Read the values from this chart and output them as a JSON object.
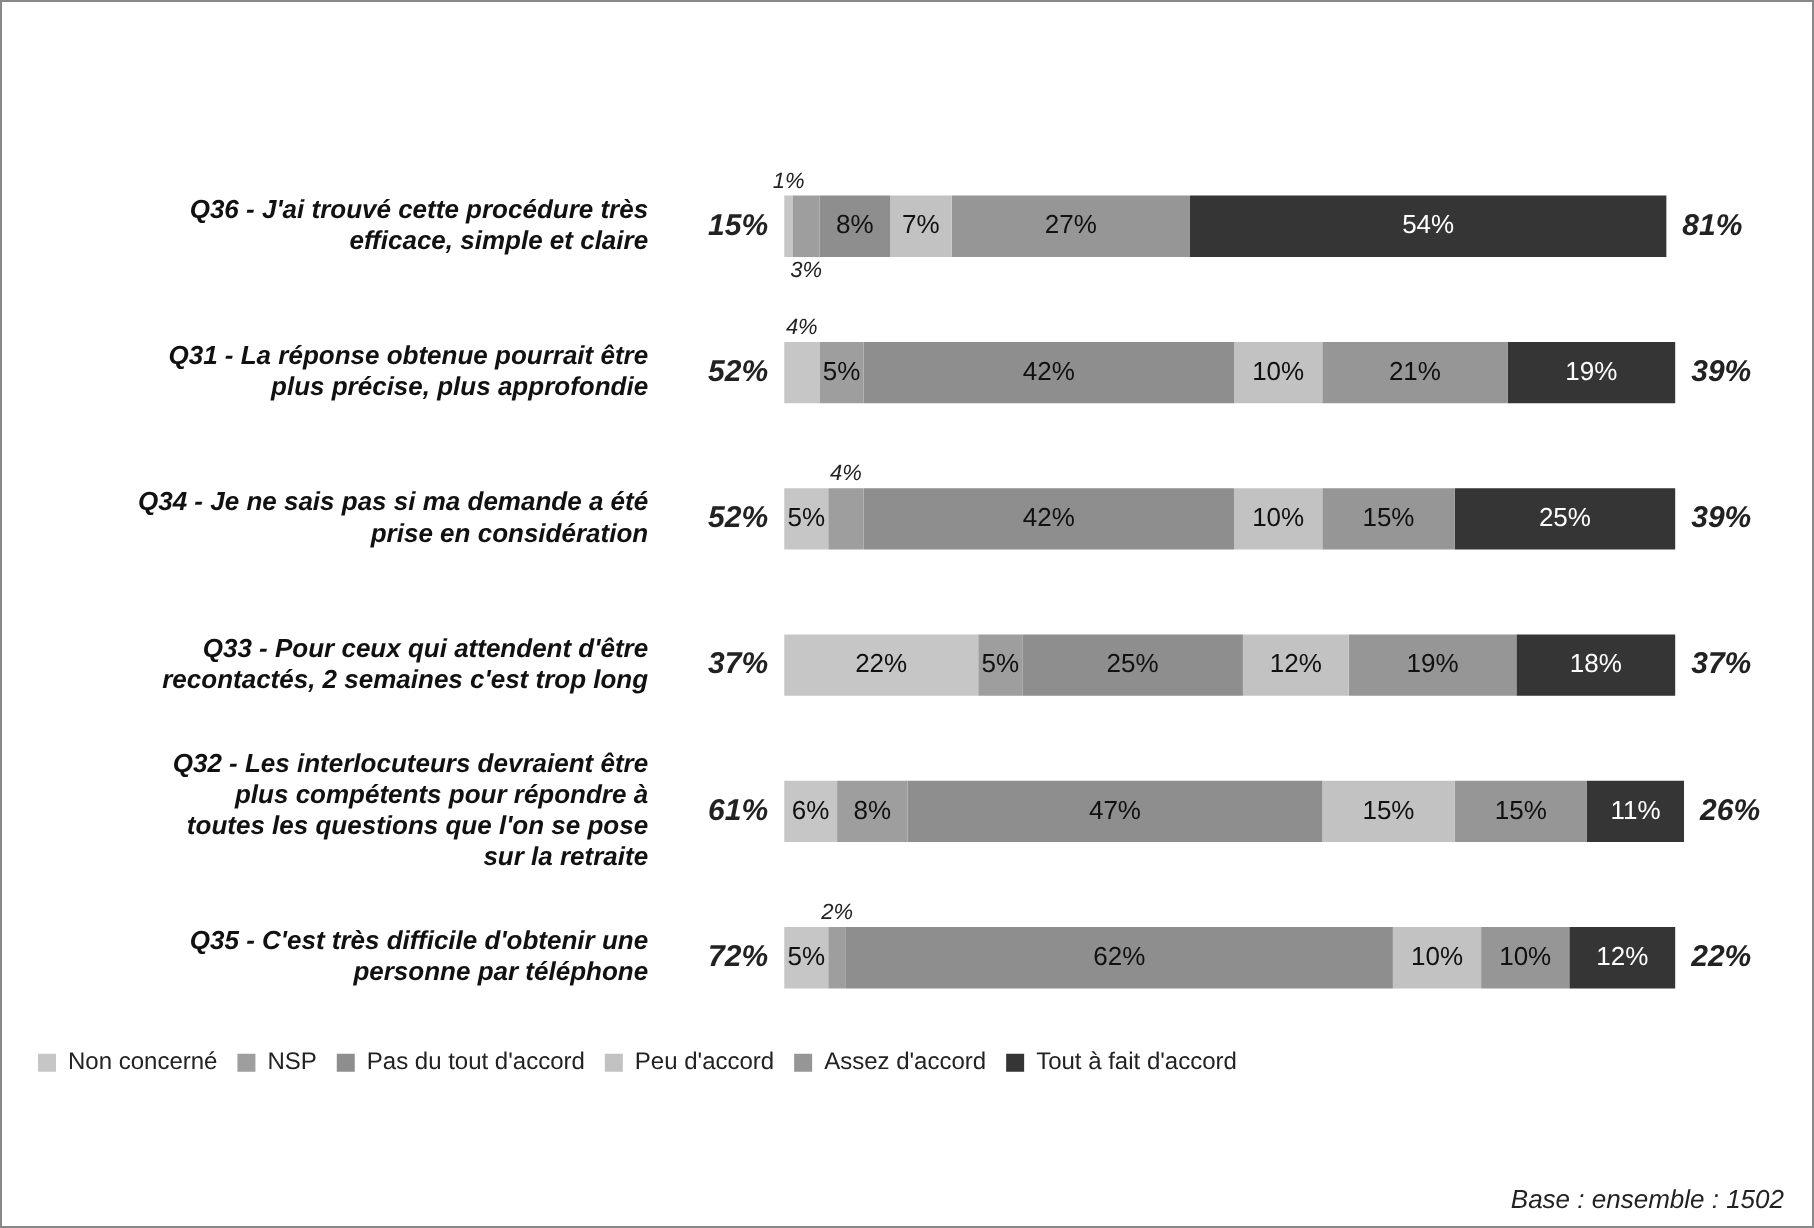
{
  "chart_data": {
    "type": "bar",
    "orientation": "horizontal",
    "stacked": true,
    "grid": false,
    "legend": "bottom left",
    "tick_labels": "y",
    "categories": [
      "Q36 - J'ai trouvé cette procédure très\nefficace, simple et claire",
      "Q31 - La réponse obtenue pourrait être\nplus précise, plus approfondie",
      "Q34 - Je ne sais pas si ma demande a été\nprise en considération",
      "Q33 - Pour ceux qui attendent d'être\nrecontactés, 2 semaines c'est trop long",
      "Q32 - Les interlocuteurs devraient être\nplus compétents pour répondre à\ntoutes les questions que l'on se pose\nsur la retraite",
      "Q35 - C'est très difficile d'obtenir une\npersonne par téléphone"
    ],
    "series": [
      {
        "name": "Non concerné",
        "color": "#c6c6c6",
        "values": [
          1,
          4,
          5,
          22,
          6,
          5
        ],
        "value_labels": [
          "1%",
          "4%",
          "5%",
          "22%",
          "6%",
          "5%"
        ]
      },
      {
        "name": "NSP",
        "color": "#9e9e9e",
        "values": [
          3,
          5,
          4,
          5,
          8,
          2
        ],
        "value_labels": [
          "3%",
          "5%",
          "4%",
          "5%",
          "8%",
          "2%"
        ]
      },
      {
        "name": "Pas du tout d'accord",
        "color": "#8e8e8e",
        "values": [
          8,
          42,
          42,
          25,
          47,
          62
        ],
        "value_labels": [
          "8%",
          "42%",
          "42%",
          "25%",
          "47%",
          "62%"
        ]
      },
      {
        "name": "Peu d'accord",
        "color": "#c2c2c2",
        "values": [
          7,
          10,
          10,
          12,
          15,
          10
        ],
        "value_labels": [
          "7%",
          "10%",
          "10%",
          "12%",
          "15%",
          "10%"
        ]
      },
      {
        "name": "Assez d'accord",
        "color": "#969696",
        "values": [
          27,
          21,
          15,
          19,
          15,
          10
        ],
        "value_labels": [
          "27%",
          "21%",
          "15%",
          "19%",
          "15%",
          "10%"
        ]
      },
      {
        "name": "Tout à fait d'accord",
        "color": "#353535",
        "values": [
          54,
          19,
          25,
          18,
          11,
          12
        ],
        "value_labels": [
          "54%",
          "19%",
          "25%",
          "18%",
          "11%",
          "12%"
        ]
      }
    ],
    "annotations": [
      "15%",
      "81%",
      "52%",
      "39%",
      "52%",
      "39%",
      "37%",
      "37%",
      "61%",
      "26%",
      "72%",
      "22%",
      "Base :  ensemble : 1502"
    ]
  }
}
